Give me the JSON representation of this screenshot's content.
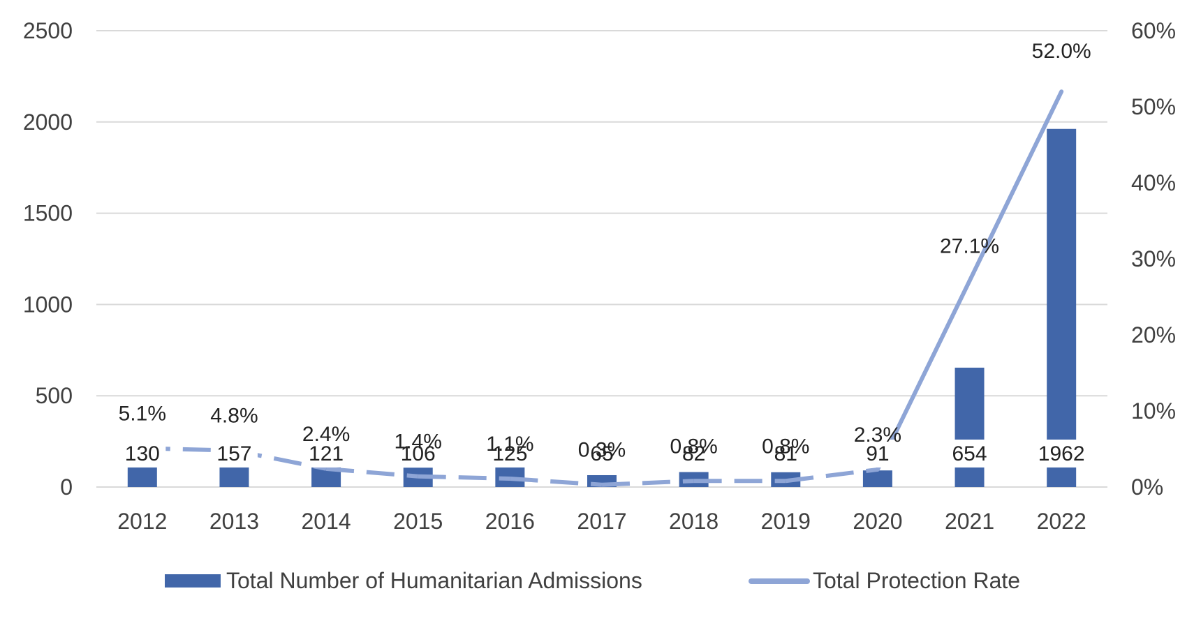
{
  "chart_data": {
    "type": "bar",
    "categories": [
      "2012",
      "2013",
      "2014",
      "2015",
      "2016",
      "2017",
      "2018",
      "2019",
      "2020",
      "2021",
      "2022"
    ],
    "series": [
      {
        "name": "Total Number of Humanitarian Admissions",
        "type": "bar",
        "axis": "left",
        "values": [
          130,
          157,
          121,
          106,
          125,
          65,
          82,
          81,
          91,
          654,
          1962
        ],
        "labels": [
          "130",
          "157",
          "121",
          "106",
          "125",
          "65",
          "82",
          "81",
          "91",
          "654",
          "1962"
        ],
        "color": "#4166A9"
      },
      {
        "name": "Total Protection Rate",
        "type": "line",
        "axis": "right",
        "values": [
          5.1,
          4.8,
          2.4,
          1.4,
          1.1,
          0.3,
          0.8,
          0.8,
          2.3,
          27.1,
          52.0
        ],
        "labels": [
          "5.1%",
          "4.8%",
          "2.4%",
          "1.4%",
          "1.1%",
          "0.3%",
          "0.8%",
          "0.8%",
          "2.3%",
          "27.1%",
          "52.0%"
        ],
        "color": "#8EA5D6",
        "dashed_segments": [
          0,
          1,
          2,
          3,
          4,
          5,
          6,
          7
        ]
      }
    ],
    "y_left": {
      "min": 0,
      "max": 2500,
      "ticks": [
        "0",
        "500",
        "1000",
        "1500",
        "2000",
        "2500"
      ]
    },
    "y_right": {
      "min": 0,
      "max": 60,
      "ticks": [
        "0%",
        "10%",
        "20%",
        "30%",
        "40%",
        "50%",
        "60%"
      ]
    },
    "grid": true,
    "legend_position": "bottom"
  }
}
